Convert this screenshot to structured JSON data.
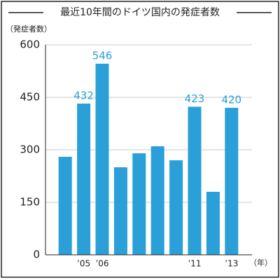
{
  "chart_data": {
    "type": "bar",
    "title": "最近10年間のドイツ国内の発症者数",
    "y_label": "（発症者数）",
    "x_label": "（年）",
    "categories": [
      null,
      "’05",
      "’06",
      null,
      null,
      null,
      null,
      "’11",
      null,
      "’13"
    ],
    "values": [
      280,
      432,
      546,
      250,
      290,
      310,
      270,
      423,
      180,
      420
    ],
    "value_labels": [
      null,
      "432",
      "546",
      null,
      null,
      null,
      null,
      "423",
      null,
      "420"
    ],
    "color": "#2a9fd8",
    "ylim": [
      0,
      600
    ],
    "yticks": [
      0,
      150,
      300,
      450,
      600
    ],
    "grid": true
  }
}
